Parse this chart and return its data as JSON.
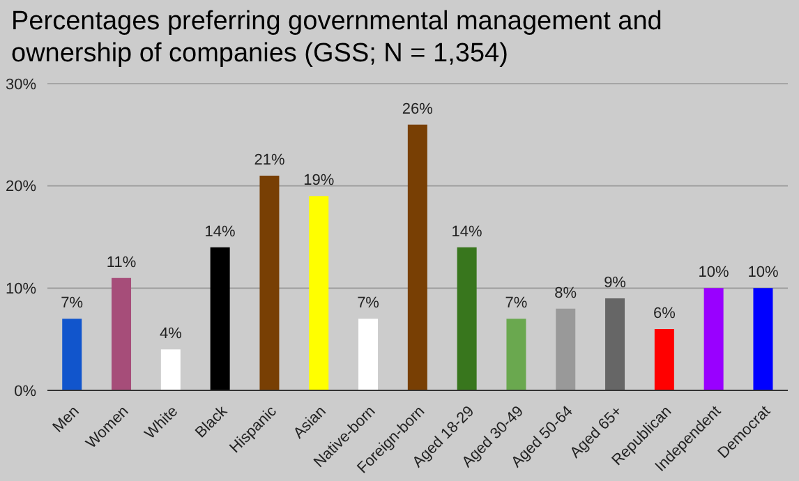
{
  "chart_data": {
    "type": "bar",
    "title": "Percentages preferring governmental management and ownership of companies (GSS; N = 1,354)",
    "categories": [
      "Men",
      "Women",
      "White",
      "Black",
      "Hispanic",
      "Asian",
      "Native-born",
      "Foreign-born",
      "Aged 18-29",
      "Aged 30-49",
      "Aged 50-64",
      "Aged 65+",
      "Republican",
      "Independent",
      "Democrat"
    ],
    "values": [
      7,
      11,
      4,
      14,
      21,
      19,
      7,
      26,
      14,
      7,
      8,
      9,
      6,
      10,
      10
    ],
    "value_labels": [
      "7%",
      "11%",
      "4%",
      "14%",
      "21%",
      "19%",
      "7%",
      "26%",
      "14%",
      "7%",
      "8%",
      "9%",
      "6%",
      "10%",
      "10%"
    ],
    "colors": [
      "#1155cc",
      "#a64d79",
      "#ffffff",
      "#000000",
      "#783f04",
      "#ffff00",
      "#ffffff",
      "#783f04",
      "#38761d",
      "#6aa84f",
      "#999999",
      "#666666",
      "#ff0000",
      "#9900ff",
      "#0000ff"
    ],
    "ylim": [
      0,
      30
    ],
    "yticks": [
      {
        "value": 0,
        "label": "0%"
      },
      {
        "value": 10,
        "label": "10%"
      },
      {
        "value": 20,
        "label": "20%"
      },
      {
        "value": 30,
        "label": "30%"
      }
    ],
    "grid": "y"
  }
}
